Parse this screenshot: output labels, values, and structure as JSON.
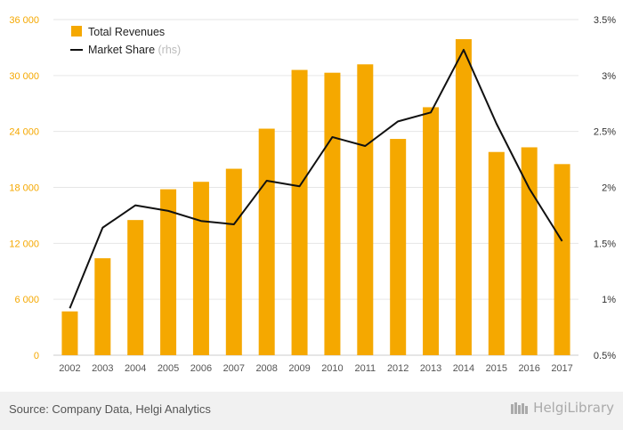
{
  "chart_data": {
    "type": "bar",
    "categories": [
      "2002",
      "2003",
      "2004",
      "2005",
      "2006",
      "2007",
      "2008",
      "2009",
      "2010",
      "2011",
      "2012",
      "2013",
      "2014",
      "2015",
      "2016",
      "2017"
    ],
    "series": [
      {
        "name": "Total Revenues",
        "type": "bar",
        "axis": "left",
        "color": "#f5a800",
        "values": [
          4700,
          10400,
          14500,
          17800,
          18600,
          20000,
          24300,
          30600,
          30300,
          31200,
          23200,
          26600,
          33900,
          21800,
          22300,
          20500
        ]
      },
      {
        "name": "Market Share",
        "name_suffix": "(rhs)",
        "type": "line",
        "axis": "right",
        "color": "#111111",
        "values": [
          0.92,
          1.64,
          1.84,
          1.79,
          1.7,
          1.67,
          2.06,
          2.01,
          2.45,
          2.37,
          2.59,
          2.67,
          3.23,
          2.57,
          1.99,
          1.52
        ]
      }
    ],
    "y_left": {
      "min": 0,
      "max": 36000,
      "ticks": [
        0,
        6000,
        12000,
        18000,
        24000,
        30000,
        36000
      ],
      "tick_labels": [
        "0",
        "6 000",
        "12 000",
        "18 000",
        "24 000",
        "30 000",
        "36 000"
      ],
      "color": "#f5a800"
    },
    "y_right": {
      "min": 0.5,
      "max": 3.5,
      "ticks": [
        0.5,
        1,
        1.5,
        2,
        2.5,
        3,
        3.5
      ],
      "tick_labels": [
        "0.5%",
        "1%",
        "1.5%",
        "2%",
        "2.5%",
        "3%",
        "3.5%"
      ],
      "color": "#333333"
    },
    "grid": true,
    "legend_position": "top-left"
  },
  "footer": {
    "source": "Source: Company Data, Helgi Analytics",
    "brand": "HelgiLibrary"
  }
}
